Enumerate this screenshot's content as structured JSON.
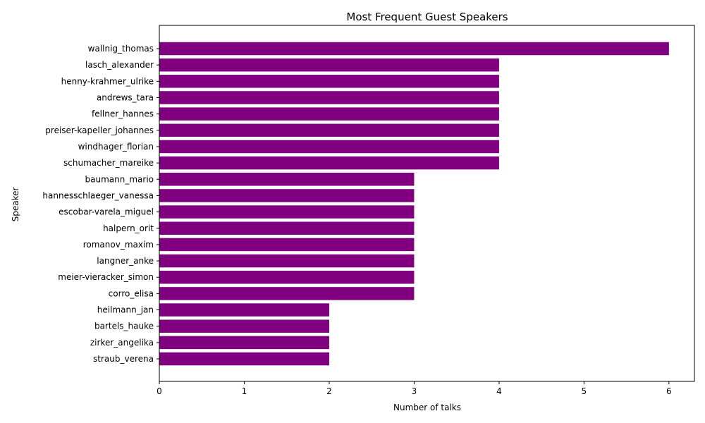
{
  "chart_data": {
    "type": "bar",
    "orientation": "horizontal",
    "title": "Most Frequent Guest Speakers",
    "xlabel": "Number of talks",
    "ylabel": "Speaker",
    "xlim": [
      0,
      6.3
    ],
    "xticks": [
      "0",
      "1",
      "2",
      "3",
      "4",
      "5",
      "6"
    ],
    "bar_color": "#800080",
    "grid": false,
    "categories": [
      "wallnig_thomas",
      "lasch_alexander",
      "henny-krahmer_ulrike",
      "andrews_tara",
      "fellner_hannes",
      "preiser-kapeller_johannes",
      "windhager_florian",
      "schumacher_mareike",
      "baumann_mario",
      "hannesschlaeger_vanessa",
      "escobar-varela_miguel",
      "halpern_orit",
      "romanov_maxim",
      "langner_anke",
      "meier-vieracker_simon",
      "corro_elisa",
      "heilmann_jan",
      "bartels_hauke",
      "zirker_angelika",
      "straub_verena"
    ],
    "values": [
      6,
      4,
      4,
      4,
      4,
      4,
      4,
      4,
      3,
      3,
      3,
      3,
      3,
      3,
      3,
      3,
      2,
      2,
      2,
      2
    ]
  }
}
